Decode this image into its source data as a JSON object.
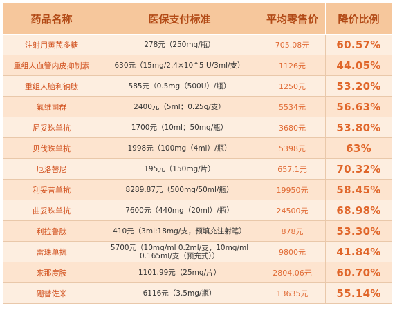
{
  "table": {
    "headers": [
      "药品名称",
      "医保支付标准",
      "平均零售价",
      "降价比例"
    ],
    "rows": [
      {
        "name": "注射用黄芪多糖",
        "standard": "278元（250mg/瓶）",
        "price": "705.08元",
        "cut": "60.57%"
      },
      {
        "name": "重组人血管内皮抑制素",
        "standard": "630元（15mg/2.4×10^5 U/3ml/支）",
        "price": "1126元",
        "cut": "44.05%"
      },
      {
        "name": "重组人脑利钠肽",
        "standard": "585元（0.5mg（500U）/瓶）",
        "price": "1250元",
        "cut": "53.20%"
      },
      {
        "name": "氟维司群",
        "standard": "2400元（5ml：0.25g/支）",
        "price": "5534元",
        "cut": "56.63%"
      },
      {
        "name": "尼妥珠单抗",
        "standard": "1700元（10ml：50mg/瓶）",
        "price": "3680元",
        "cut": "53.80%"
      },
      {
        "name": "贝伐珠单抗",
        "standard": "1998元（100mg（4ml）/瓶）",
        "price": "5398元",
        "cut": "63%"
      },
      {
        "name": "厄洛替尼",
        "standard": "195元（150mg/片）",
        "price": "657.1元",
        "cut": "70.32%"
      },
      {
        "name": "利妥昔单抗",
        "standard": "8289.87元（500mg/50ml/瓶）",
        "price": "19950元",
        "cut": "58.45%"
      },
      {
        "name": "曲妥珠单抗",
        "standard": "7600元（440mg（20ml）/瓶）",
        "price": "24500元",
        "cut": "68.98%"
      },
      {
        "name": "利拉鲁肽",
        "standard": "410元（3ml:18mg/支，预填充注射笔）",
        "price": "878元",
        "cut": "53.30%"
      },
      {
        "name": "雷珠单抗",
        "standard": "5700元（10mg/ml 0.2ml/支，10mg/ml 0.165ml/支（预充式））",
        "price": "9800元",
        "cut": "41.84%"
      },
      {
        "name": "来那度胺",
        "standard": "1101.99元（25mg/片）",
        "price": "2804.06元",
        "cut": "60.70%"
      },
      {
        "name": "硼替佐米",
        "standard": "6116元（3.5mg/瓶）",
        "price": "13635元",
        "cut": "55.14%"
      }
    ]
  }
}
